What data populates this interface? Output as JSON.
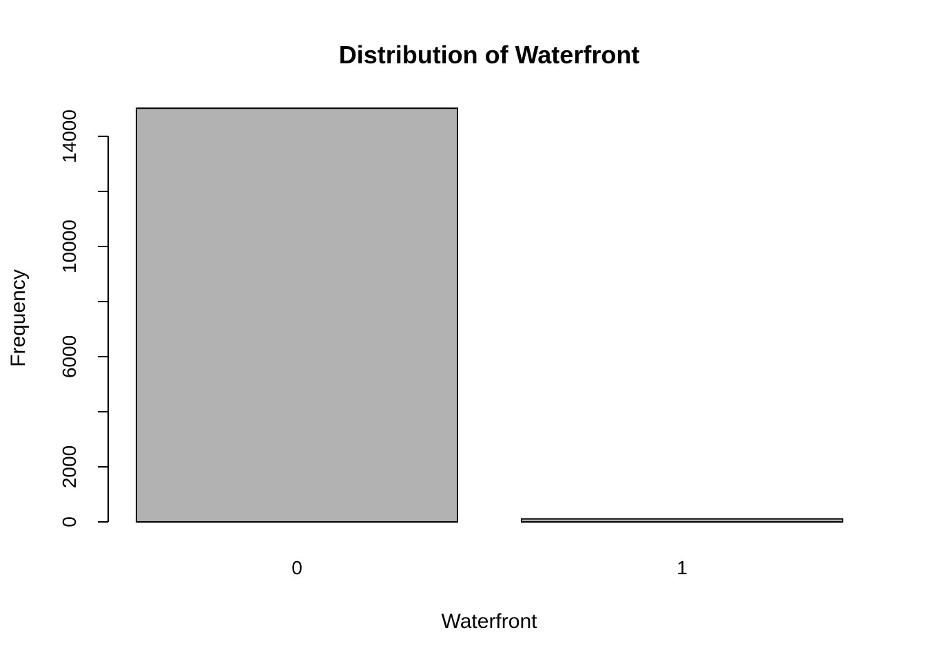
{
  "chart_data": {
    "type": "bar",
    "title": "Distribution of Waterfront",
    "xlabel": "Waterfront",
    "ylabel": "Frequency",
    "categories": [
      "0",
      "1"
    ],
    "values": [
      15020,
      110
    ],
    "ylim": [
      0,
      14000
    ],
    "yticks": [
      0,
      2000,
      6000,
      10000,
      14000
    ],
    "yticks_minor": [
      4000,
      8000,
      12000
    ],
    "bar_color": "#b2b2b2",
    "grid": false,
    "legend": "none"
  }
}
